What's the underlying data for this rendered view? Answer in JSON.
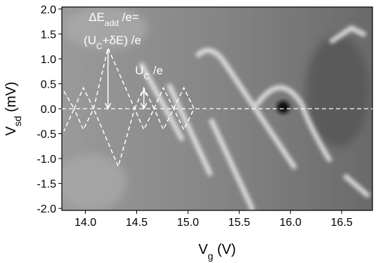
{
  "chart_data": {
    "type": "map",
    "xlabel": [
      {
        "t": "V"
      },
      {
        "t": "g",
        "sub": true
      },
      {
        "t": " (V)"
      }
    ],
    "ylabel": [
      {
        "t": "V"
      },
      {
        "t": "sd",
        "sub": true
      },
      {
        "t": " (mV)"
      }
    ],
    "xlim": [
      13.77,
      16.8
    ],
    "ylim": [
      -2.04,
      2.04
    ],
    "xticks": [
      {
        "value": 14,
        "label": "14.0"
      },
      14.5,
      {
        "value": 15,
        "label": "15.0"
      },
      15.5,
      {
        "value": 16,
        "label": "16.0"
      },
      16.5
    ],
    "yticks": [
      {
        "value": 2,
        "label": "2.0"
      },
      1.5,
      {
        "value": 1,
        "label": "1.0"
      },
      0.5,
      {
        "value": 0,
        "label": "0.0"
      },
      -0.5,
      {
        "value": -1,
        "label": "-1.0"
      },
      -1.5,
      {
        "value": -2,
        "label": "-2.0"
      }
    ],
    "hline": 0,
    "series": [
      {
        "color": "#ffffff",
        "x": [
          13.79,
          13.89,
          13.79
        ],
        "values": [
          0.35,
          0,
          -0.45
        ]
      },
      {
        "color": "#ffffff",
        "x": [
          13.89,
          13.98,
          14.08,
          13.98,
          13.89
        ],
        "values": [
          0,
          0.42,
          0,
          -0.42,
          0
        ]
      },
      {
        "color": "#ffffff",
        "x": [
          14.08,
          14.22,
          14.48,
          14.32,
          14.08
        ],
        "values": [
          0,
          1.22,
          0,
          -1.16,
          0
        ]
      },
      {
        "color": "#ffffff",
        "x": [
          14.48,
          14.57,
          14.67,
          14.57,
          14.48
        ],
        "values": [
          0,
          0.42,
          0,
          -0.42,
          0
        ]
      },
      {
        "color": "#ffffff",
        "x": [
          14.67,
          14.76,
          14.86,
          14.76,
          14.67
        ],
        "values": [
          0,
          0.42,
          0,
          -0.42,
          0
        ]
      },
      {
        "color": "#ffffff",
        "x": [
          14.86,
          14.96,
          15.06,
          14.96,
          14.86
        ],
        "values": [
          0,
          0.42,
          0,
          -0.42,
          0
        ]
      }
    ],
    "arrows": [
      {
        "x": 14.22,
        "y": [
          1.2,
          0
        ],
        "double": false
      },
      {
        "x": 14.57,
        "y": [
          0.38,
          0
        ],
        "double": true
      }
    ],
    "annotations": [
      [
        {
          "t": "ΔE"
        },
        {
          "t": "add",
          "sub": true
        },
        {
          "t": " /e="
        }
      ],
      [
        {
          "t": "(U"
        },
        {
          "t": "C",
          "sub": true
        },
        {
          "t": "+δE) /e"
        }
      ],
      [
        {
          "t": "U"
        },
        {
          "t": "C",
          "sub": true
        },
        {
          "t": " /e"
        }
      ]
    ]
  }
}
